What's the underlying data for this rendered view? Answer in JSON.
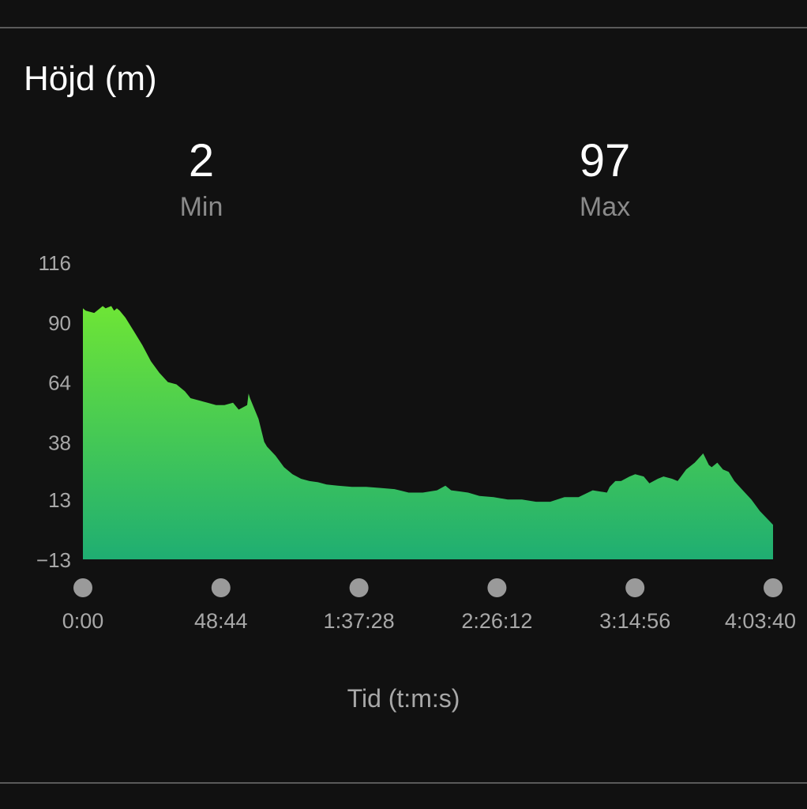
{
  "header": {
    "title": "Höjd (m)"
  },
  "stats": {
    "min": {
      "value": "2",
      "label": "Min"
    },
    "max": {
      "value": "97",
      "label": "Max"
    }
  },
  "colors": {
    "background": "#111111",
    "divider": "#5a5a5a",
    "area_top": "#6ee536",
    "area_bottom": "#1fae72",
    "tick_text": "#a8a8a8",
    "marker": "#9a9a9a"
  },
  "chart_data": {
    "type": "area",
    "title": "Höjd (m)",
    "xlabel": "Tid (t:m:s)",
    "ylabel": "",
    "y_ticks": [
      "116",
      "90",
      "64",
      "38",
      "13",
      "−13"
    ],
    "y_tick_values": [
      116,
      90,
      64,
      38,
      13,
      -13
    ],
    "x_ticks": [
      "0:00",
      "48:44",
      "1:37:28",
      "2:26:12",
      "3:14:56",
      "4:03:40"
    ],
    "x_tick_values": [
      0,
      48.73,
      97.47,
      146.2,
      194.93,
      243.67
    ],
    "xlim": [
      0,
      243.67
    ],
    "ylim": [
      -13,
      116
    ],
    "x_unit": "minutes",
    "grid": false,
    "legend": "none",
    "series": [
      {
        "x": [
          0,
          1,
          4,
          7,
          8,
          10,
          11,
          12,
          13,
          15,
          18,
          21,
          24,
          27,
          30,
          33,
          36,
          38,
          41,
          44,
          47,
          50,
          53,
          55,
          58,
          58.5,
          59,
          60,
          62,
          64,
          65,
          68,
          71,
          74,
          77,
          80,
          83,
          86,
          90,
          95,
          100,
          105,
          110,
          115,
          120,
          125,
          128,
          130,
          133,
          136,
          140,
          145,
          150,
          155,
          160,
          165,
          170,
          175,
          180,
          185,
          186,
          188,
          190,
          193,
          195,
          198,
          200,
          203,
          205,
          208,
          210,
          213,
          216,
          219,
          221,
          222,
          224,
          226,
          228,
          230,
          233,
          236,
          239,
          243.67
        ],
        "y": [
          96,
          95,
          94,
          97,
          96,
          97,
          95,
          96,
          95,
          92,
          86,
          80,
          73,
          68,
          64,
          63,
          60,
          57,
          56,
          55,
          54,
          54,
          55,
          52,
          54,
          59,
          57,
          54,
          48,
          38,
          36,
          32,
          27,
          24,
          22,
          21,
          20.5,
          19.5,
          19,
          18.5,
          18.5,
          18,
          17.5,
          16,
          16,
          17,
          19,
          17,
          16.5,
          16,
          14.5,
          14,
          13,
          13,
          12,
          12,
          14,
          14,
          17,
          16,
          18.5,
          21,
          21,
          23,
          24,
          23,
          20,
          22,
          23,
          22,
          21,
          26,
          29,
          33,
          28,
          27,
          29,
          26,
          25,
          21,
          17,
          13,
          8,
          2
        ]
      }
    ]
  }
}
